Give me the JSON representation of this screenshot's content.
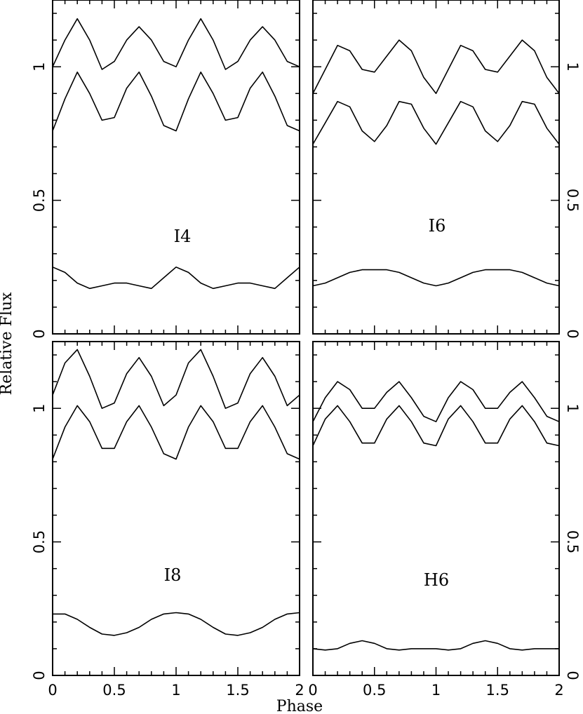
{
  "chart_data": {
    "type": "line",
    "ylabel": "Relative Flux",
    "xlabel": "Phase",
    "xlim": [
      0,
      2
    ],
    "ylim": [
      0,
      1.25
    ],
    "x_ticks": [
      "0",
      "0.5",
      "1",
      "1.5",
      "2"
    ],
    "y_ticks": [
      "0",
      "0.5",
      "1"
    ],
    "panels": [
      {
        "label": "I4",
        "series": [
          {
            "x": [
              0,
              0.1,
              0.2,
              0.3,
              0.4,
              0.5,
              0.6,
              0.7,
              0.8,
              0.9,
              1.0,
              1.1,
              1.2,
              1.3,
              1.4,
              1.5,
              1.6,
              1.7,
              1.8,
              1.9,
              2.0
            ],
            "y": [
              1.0,
              1.1,
              1.18,
              1.1,
              0.99,
              1.02,
              1.1,
              1.15,
              1.1,
              1.02,
              1.0,
              1.1,
              1.18,
              1.1,
              0.99,
              1.02,
              1.1,
              1.15,
              1.1,
              1.02,
              1.0
            ]
          },
          {
            "x": [
              0,
              0.1,
              0.2,
              0.3,
              0.4,
              0.5,
              0.6,
              0.7,
              0.8,
              0.9,
              1.0,
              1.1,
              1.2,
              1.3,
              1.4,
              1.5,
              1.6,
              1.7,
              1.8,
              1.9,
              2.0
            ],
            "y": [
              0.76,
              0.88,
              0.98,
              0.9,
              0.8,
              0.81,
              0.92,
              0.98,
              0.89,
              0.78,
              0.76,
              0.88,
              0.98,
              0.9,
              0.8,
              0.81,
              0.92,
              0.98,
              0.89,
              0.78,
              0.76
            ]
          },
          {
            "x": [
              0,
              0.1,
              0.2,
              0.3,
              0.4,
              0.5,
              0.6,
              0.7,
              0.8,
              0.9,
              1.0,
              1.1,
              1.2,
              1.3,
              1.4,
              1.5,
              1.6,
              1.7,
              1.8,
              1.9,
              2.0
            ],
            "y": [
              0.25,
              0.23,
              0.19,
              0.17,
              0.18,
              0.19,
              0.19,
              0.18,
              0.17,
              0.21,
              0.25,
              0.23,
              0.19,
              0.17,
              0.18,
              0.19,
              0.19,
              0.18,
              0.17,
              0.21,
              0.25
            ]
          }
        ]
      },
      {
        "label": "I6",
        "series": [
          {
            "x": [
              0,
              0.1,
              0.2,
              0.3,
              0.4,
              0.5,
              0.6,
              0.7,
              0.8,
              0.9,
              1.0,
              1.1,
              1.2,
              1.3,
              1.4,
              1.5,
              1.6,
              1.7,
              1.8,
              1.9,
              2.0
            ],
            "y": [
              0.9,
              0.99,
              1.08,
              1.06,
              0.99,
              0.98,
              1.04,
              1.1,
              1.06,
              0.96,
              0.9,
              0.99,
              1.08,
              1.06,
              0.99,
              0.98,
              1.04,
              1.1,
              1.06,
              0.96,
              0.9
            ]
          },
          {
            "x": [
              0,
              0.1,
              0.2,
              0.3,
              0.4,
              0.5,
              0.6,
              0.7,
              0.8,
              0.9,
              1.0,
              1.1,
              1.2,
              1.3,
              1.4,
              1.5,
              1.6,
              1.7,
              1.8,
              1.9,
              2.0
            ],
            "y": [
              0.71,
              0.79,
              0.87,
              0.85,
              0.76,
              0.72,
              0.78,
              0.87,
              0.86,
              0.77,
              0.71,
              0.79,
              0.87,
              0.85,
              0.76,
              0.72,
              0.78,
              0.87,
              0.86,
              0.77,
              0.71
            ]
          },
          {
            "x": [
              0,
              0.1,
              0.2,
              0.3,
              0.4,
              0.5,
              0.6,
              0.7,
              0.8,
              0.9,
              1.0,
              1.1,
              1.2,
              1.3,
              1.4,
              1.5,
              1.6,
              1.7,
              1.8,
              1.9,
              2.0
            ],
            "y": [
              0.18,
              0.19,
              0.21,
              0.23,
              0.24,
              0.24,
              0.24,
              0.23,
              0.21,
              0.19,
              0.18,
              0.19,
              0.21,
              0.23,
              0.24,
              0.24,
              0.24,
              0.23,
              0.21,
              0.19,
              0.18
            ]
          }
        ]
      },
      {
        "label": "I8",
        "series": [
          {
            "x": [
              0,
              0.1,
              0.2,
              0.3,
              0.4,
              0.5,
              0.6,
              0.7,
              0.8,
              0.9,
              1.0,
              1.1,
              1.2,
              1.3,
              1.4,
              1.5,
              1.6,
              1.7,
              1.8,
              1.9,
              2.0
            ],
            "y": [
              1.05,
              1.17,
              1.22,
              1.12,
              1.0,
              1.02,
              1.13,
              1.19,
              1.12,
              1.01,
              1.05,
              1.17,
              1.22,
              1.12,
              1.0,
              1.02,
              1.13,
              1.19,
              1.12,
              1.01,
              1.05
            ]
          },
          {
            "x": [
              0,
              0.1,
              0.2,
              0.3,
              0.4,
              0.5,
              0.6,
              0.7,
              0.8,
              0.9,
              1.0,
              1.1,
              1.2,
              1.3,
              1.4,
              1.5,
              1.6,
              1.7,
              1.8,
              1.9,
              2.0
            ],
            "y": [
              0.81,
              0.93,
              1.01,
              0.95,
              0.85,
              0.85,
              0.95,
              1.01,
              0.93,
              0.83,
              0.81,
              0.93,
              1.01,
              0.95,
              0.85,
              0.85,
              0.95,
              1.01,
              0.93,
              0.83,
              0.81
            ]
          },
          {
            "x": [
              0,
              0.1,
              0.2,
              0.3,
              0.4,
              0.5,
              0.6,
              0.7,
              0.8,
              0.9,
              1.0,
              1.1,
              1.2,
              1.3,
              1.4,
              1.5,
              1.6,
              1.7,
              1.8,
              1.9,
              2.0
            ],
            "y": [
              0.23,
              0.23,
              0.21,
              0.18,
              0.155,
              0.15,
              0.16,
              0.18,
              0.21,
              0.23,
              0.235,
              0.23,
              0.21,
              0.18,
              0.155,
              0.15,
              0.16,
              0.18,
              0.21,
              0.23,
              0.235
            ]
          }
        ]
      },
      {
        "label": "H6",
        "series": [
          {
            "x": [
              0,
              0.1,
              0.2,
              0.3,
              0.4,
              0.5,
              0.6,
              0.7,
              0.8,
              0.9,
              1.0,
              1.1,
              1.2,
              1.3,
              1.4,
              1.5,
              1.6,
              1.7,
              1.8,
              1.9,
              2.0
            ],
            "y": [
              0.95,
              1.04,
              1.1,
              1.07,
              1.0,
              1.0,
              1.06,
              1.1,
              1.04,
              0.97,
              0.95,
              1.04,
              1.1,
              1.07,
              1.0,
              1.0,
              1.06,
              1.1,
              1.04,
              0.97,
              0.95
            ]
          },
          {
            "x": [
              0,
              0.1,
              0.2,
              0.3,
              0.4,
              0.5,
              0.6,
              0.7,
              0.8,
              0.9,
              1.0,
              1.1,
              1.2,
              1.3,
              1.4,
              1.5,
              1.6,
              1.7,
              1.8,
              1.9,
              2.0
            ],
            "y": [
              0.86,
              0.96,
              1.01,
              0.95,
              0.87,
              0.87,
              0.96,
              1.01,
              0.95,
              0.87,
              0.86,
              0.96,
              1.01,
              0.95,
              0.87,
              0.87,
              0.96,
              1.01,
              0.95,
              0.87,
              0.86
            ]
          },
          {
            "x": [
              0,
              0.1,
              0.2,
              0.3,
              0.4,
              0.5,
              0.6,
              0.7,
              0.8,
              0.9,
              1.0,
              1.1,
              1.2,
              1.3,
              1.4,
              1.5,
              1.6,
              1.7,
              1.8,
              1.9,
              2.0
            ],
            "y": [
              0.1,
              0.095,
              0.1,
              0.12,
              0.13,
              0.12,
              0.1,
              0.095,
              0.1,
              0.1,
              0.1,
              0.095,
              0.1,
              0.12,
              0.13,
              0.12,
              0.1,
              0.095,
              0.1,
              0.1,
              0.1
            ]
          }
        ]
      }
    ]
  }
}
